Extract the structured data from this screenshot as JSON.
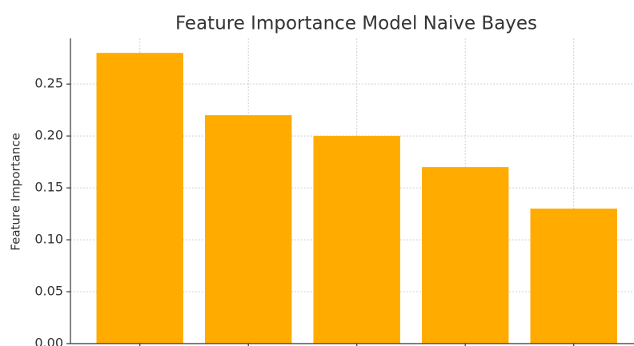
{
  "chart_data": {
    "type": "bar",
    "title": "Feature Importance Model Naive Bayes",
    "ylabel": "Feature Importance",
    "categories": [
      null,
      null,
      null,
      null,
      null
    ],
    "values": [
      0.28,
      0.22,
      0.2,
      0.17,
      0.13
    ],
    "color": "#ffab00",
    "ylim": [
      0,
      0.294
    ],
    "yticks": [
      {
        "value": 0,
        "label": "0.00"
      },
      0.05,
      {
        "value": 0.1,
        "label": "0.10"
      },
      0.15,
      {
        "value": 0.2,
        "label": "0.20"
      },
      0.25
    ],
    "grid": true
  }
}
